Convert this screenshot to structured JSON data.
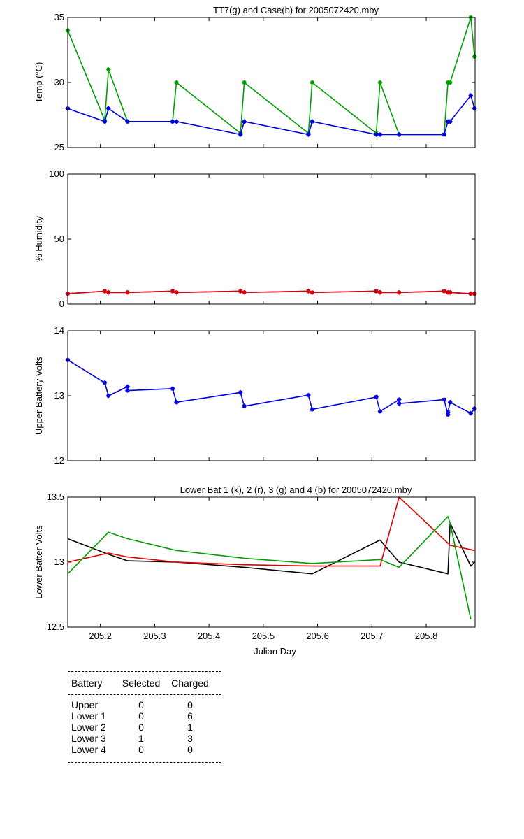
{
  "chart_data": [
    {
      "type": "line",
      "title": "TT7(g) and Case(b) for 2005072420.mby",
      "xlabel": "",
      "ylabel": "Temp  (°C)",
      "xlim": [
        205.14,
        205.89
      ],
      "ylim": [
        25,
        35
      ],
      "yticks": [
        25,
        30,
        35
      ],
      "series": [
        {
          "color": "#00a000",
          "marker": "*",
          "x": [
            205.14,
            205.208,
            205.215,
            205.25,
            205.333,
            205.34,
            205.458,
            205.465,
            205.583,
            205.59,
            205.708,
            205.715,
            205.75,
            205.833,
            205.84,
            205.844,
            205.882,
            205.889
          ],
          "y": [
            34,
            27.1,
            31,
            27,
            27,
            30,
            26.1,
            30,
            26.1,
            30,
            26.1,
            30,
            26,
            26,
            30,
            30,
            35,
            32
          ]
        },
        {
          "color": "#0000e0",
          "marker": "*",
          "x": [
            205.14,
            205.208,
            205.215,
            205.25,
            205.333,
            205.34,
            205.458,
            205.465,
            205.583,
            205.59,
            205.708,
            205.715,
            205.75,
            205.833,
            205.84,
            205.844,
            205.882,
            205.889
          ],
          "y": [
            28,
            27,
            28,
            27,
            27,
            27,
            26,
            27,
            26,
            27,
            26,
            26,
            26,
            26,
            27,
            27,
            29,
            28
          ]
        }
      ]
    },
    {
      "type": "line",
      "title": "",
      "xlabel": "",
      "ylabel": "% Humidity",
      "xlim": [
        205.14,
        205.89
      ],
      "ylim": [
        0,
        100
      ],
      "yticks": [
        0,
        50,
        100
      ],
      "series": [
        {
          "color": "#0000e0",
          "marker": "*",
          "x": [
            205.14,
            205.208,
            205.215,
            205.25,
            205.333,
            205.34,
            205.458,
            205.465,
            205.583,
            205.59,
            205.708,
            205.715,
            205.75,
            205.833,
            205.84,
            205.844,
            205.882,
            205.889
          ],
          "y": [
            8,
            10,
            9,
            9,
            10,
            9,
            10,
            9,
            10,
            9,
            10,
            9,
            9,
            10,
            9,
            9,
            8,
            8
          ]
        },
        {
          "color": "#e00000",
          "marker": "*",
          "x": [
            205.14,
            205.208,
            205.215,
            205.25,
            205.333,
            205.34,
            205.458,
            205.465,
            205.583,
            205.59,
            205.708,
            205.715,
            205.75,
            205.833,
            205.84,
            205.844,
            205.882,
            205.889
          ],
          "y": [
            8,
            10,
            9,
            9,
            10,
            9,
            10,
            9,
            10,
            9,
            10,
            9,
            9,
            10,
            9,
            9,
            8,
            8
          ]
        }
      ]
    },
    {
      "type": "line",
      "title": "",
      "xlabel": "",
      "ylabel": "Upper Battery Volts",
      "xlim": [
        205.14,
        205.89
      ],
      "ylim": [
        12,
        14
      ],
      "yticks": [
        12,
        13,
        14
      ],
      "series": [
        {
          "color": "#0000e0",
          "marker": "*",
          "x": [
            205.14,
            205.208,
            205.215,
            205.25,
            205.25,
            205.333,
            205.34,
            205.458,
            205.465,
            205.583,
            205.59,
            205.708,
            205.715,
            205.75,
            205.75,
            205.833,
            205.84,
            205.84,
            205.844,
            205.882,
            205.889
          ],
          "y": [
            13.55,
            13.2,
            13.0,
            13.14,
            13.08,
            13.11,
            12.9,
            13.05,
            12.84,
            13.01,
            12.79,
            12.98,
            12.76,
            12.94,
            12.88,
            12.94,
            12.71,
            12.75,
            12.9,
            12.73,
            12.8
          ]
        }
      ]
    },
    {
      "type": "line",
      "title": "Lower Bat 1 (k), 2 (r), 3 (g) and 4 (b) for 2005072420.mby",
      "xlabel": "Julian Day",
      "ylabel": "Lower Batter Volts",
      "xlim": [
        205.14,
        205.89
      ],
      "ylim": [
        12.5,
        13.5
      ],
      "yticks": [
        12.5,
        13,
        13.5
      ],
      "xticks": [
        205.2,
        205.3,
        205.4,
        205.5,
        205.6,
        205.7,
        205.8
      ],
      "xticklabels": [
        "205.2",
        "205.3",
        "205.4",
        "205.5",
        "205.6",
        "205.7",
        "205.8"
      ],
      "series": [
        {
          "color": "#000000",
          "x": [
            205.14,
            205.215,
            205.25,
            205.34,
            205.465,
            205.59,
            205.715,
            205.75,
            205.84,
            205.844,
            205.882,
            205.889
          ],
          "y": [
            13.18,
            13.06,
            13.01,
            13.0,
            12.96,
            12.91,
            13.17,
            13.0,
            12.91,
            13.3,
            12.97,
            13.0
          ]
        },
        {
          "color": "#e00000",
          "x": [
            205.14,
            205.215,
            205.25,
            205.34,
            205.465,
            205.59,
            205.715,
            205.75,
            205.844,
            205.889
          ],
          "y": [
            13.0,
            13.07,
            13.04,
            13.0,
            12.98,
            12.97,
            12.97,
            13.5,
            13.13,
            13.09
          ]
        },
        {
          "color": "#00a000",
          "x": [
            205.14,
            205.215,
            205.25,
            205.34,
            205.465,
            205.59,
            205.715,
            205.75,
            205.84,
            205.844,
            205.882
          ],
          "y": [
            12.91,
            13.23,
            13.18,
            13.09,
            13.03,
            12.99,
            13.02,
            12.96,
            13.35,
            13.3,
            12.56
          ]
        }
      ]
    }
  ],
  "battery_table": {
    "headers": [
      "Battery",
      "Selected",
      "Charged"
    ],
    "rows": [
      [
        "Upper",
        "0",
        "0"
      ],
      [
        "Lower 1",
        "0",
        "6"
      ],
      [
        "Lower 2",
        "0",
        "1"
      ],
      [
        "Lower 3",
        "1",
        "3"
      ],
      [
        "Lower 4",
        "0",
        "0"
      ]
    ]
  }
}
